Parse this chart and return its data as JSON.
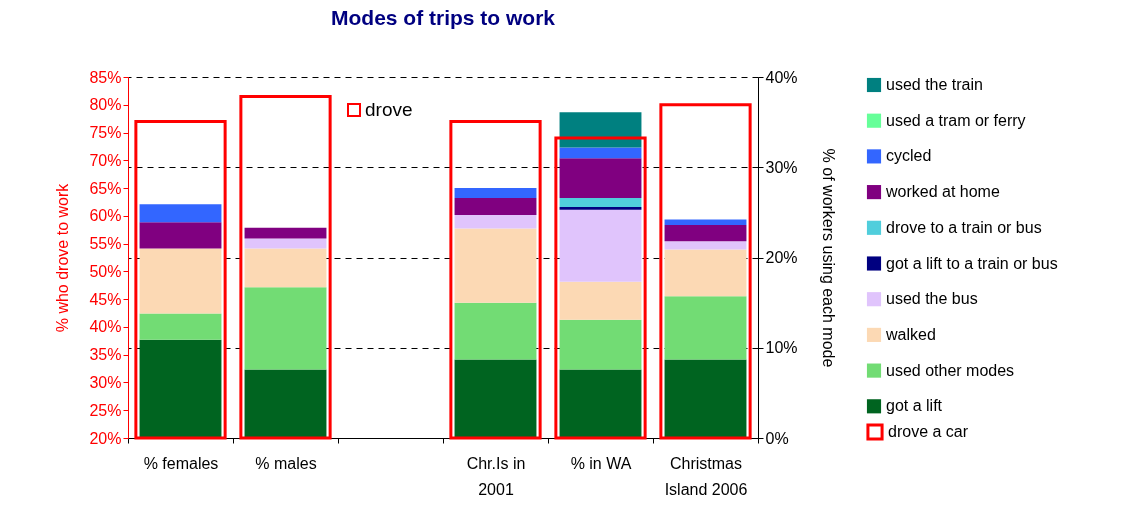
{
  "chart_data": {
    "type": "bar",
    "title": "Modes of trips to work",
    "ylabel": "% who drove to work",
    "y2label": "% of workers using each mode",
    "categories": [
      "% females",
      "% males",
      null,
      "Chr.Is in 2001",
      "% in WA",
      "Christmas Island 2006"
    ],
    "series": [
      {
        "name": "got a lift",
        "color": "#006420",
        "axis": "y2",
        "values": [
          10.9,
          7.6,
          null,
          8.7,
          7.6,
          8.7
        ]
      },
      {
        "name": "used other modes",
        "color": "#72dc74",
        "axis": "y2",
        "values": [
          2.9,
          9.1,
          null,
          6.3,
          5.5,
          7.0
        ]
      },
      {
        "name": "walked",
        "color": "#fcd9b4",
        "axis": "y2",
        "values": [
          7.2,
          4.3,
          null,
          8.2,
          4.2,
          5.2
        ]
      },
      {
        "name": "used the bus",
        "color": "#e0c4fc",
        "axis": "y2",
        "values": [
          null,
          1.1,
          null,
          1.5,
          8.0,
          0.9
        ]
      },
      {
        "name": "got a lift to a train or bus",
        "color": "#000080",
        "axis": "y2",
        "values": [
          null,
          null,
          null,
          null,
          0.3,
          null
        ]
      },
      {
        "name": "drove to a train or bus",
        "color": "#50cedc",
        "axis": "y2",
        "values": [
          null,
          null,
          null,
          null,
          1.0,
          null
        ]
      },
      {
        "name": "worked at home",
        "color": "#800080",
        "axis": "y2",
        "values": [
          2.9,
          1.2,
          null,
          1.9,
          4.4,
          1.8
        ]
      },
      {
        "name": "cycled",
        "color": "#3366ff",
        "axis": "y2",
        "values": [
          2.0,
          null,
          null,
          1.1,
          1.2,
          0.6
        ]
      },
      {
        "name": "used a tram or ferry",
        "color": "#66ff99",
        "axis": "y2",
        "values": [
          null,
          null,
          null,
          null,
          null,
          null
        ]
      },
      {
        "name": "used the train",
        "color": "#008080",
        "axis": "y2",
        "values": [
          null,
          null,
          null,
          null,
          3.9,
          null
        ]
      },
      {
        "name": "drove a car",
        "color": "#ff0000",
        "axis": "y",
        "values": [
          77,
          81.5,
          null,
          77,
          74,
          80
        ]
      }
    ],
    "stacked": true,
    "ylim": [
      20,
      85
    ],
    "yticks": [
      {
        "value": 20,
        "label": "20%"
      },
      {
        "value": 25,
        "label": "25%"
      },
      {
        "value": 30,
        "label": "30%"
      },
      {
        "value": 35,
        "label": "35%"
      },
      {
        "value": 40,
        "label": "40%"
      },
      {
        "value": 45,
        "label": "45%"
      },
      {
        "value": 50,
        "label": "50%"
      },
      {
        "value": 55,
        "label": "55%"
      },
      {
        "value": 60,
        "label": "60%"
      },
      {
        "value": 65,
        "label": "65%"
      },
      {
        "value": 70,
        "label": "70%"
      },
      {
        "value": 75,
        "label": "75%"
      },
      {
        "value": 80,
        "label": "80%"
      },
      {
        "value": 85,
        "label": "85%"
      }
    ],
    "y2lim": [
      0,
      40
    ],
    "y2ticks": [
      {
        "value": 0,
        "label": "0%"
      },
      {
        "value": 10,
        "label": "10%"
      },
      {
        "value": 20,
        "label": "20%"
      },
      {
        "value": 30,
        "label": "30%"
      },
      {
        "value": 40,
        "label": "40%"
      }
    ],
    "grid": "y",
    "legend": "right",
    "annotations": [
      "drove"
    ]
  }
}
